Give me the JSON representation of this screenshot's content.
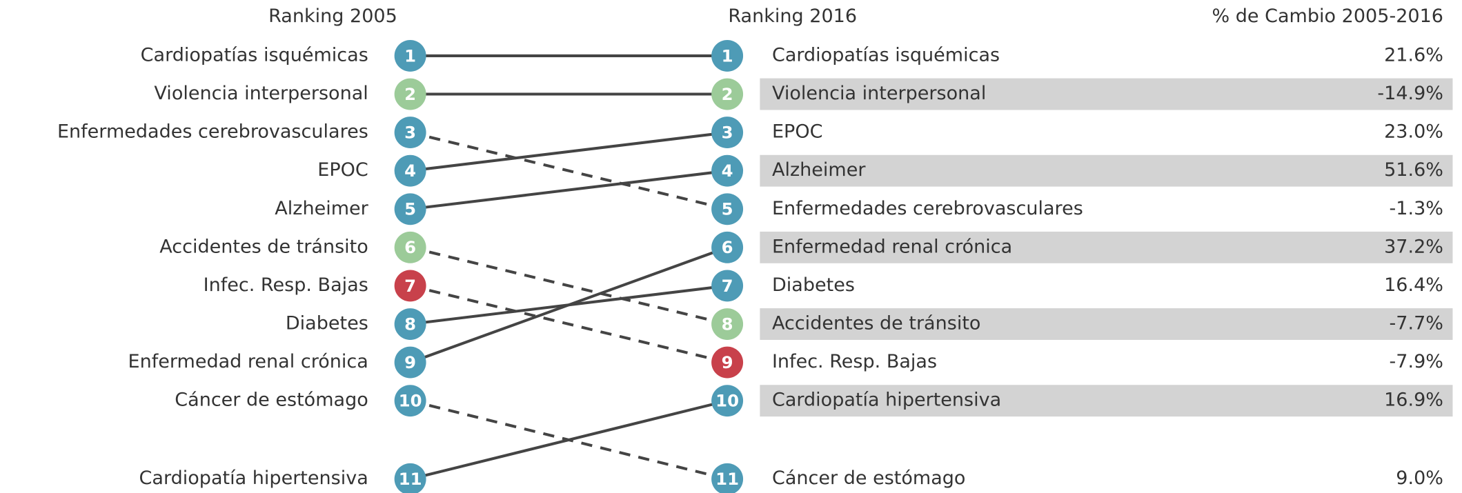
{
  "headers": {
    "left": "Ranking 2005",
    "right": "Ranking 2016",
    "change": "% de Cambio 2005-2016"
  },
  "colors": {
    "noncommunicable": "#4e9bb6",
    "injury": "#9ccb99",
    "communicable": "#c8414b"
  },
  "left": [
    {
      "rank": 1,
      "label": "Cardiopatías isquémicas",
      "group": "noncommunicable"
    },
    {
      "rank": 2,
      "label": "Violencia interpersonal",
      "group": "injury"
    },
    {
      "rank": 3,
      "label": "Enfermedades cerebrovasculares",
      "group": "noncommunicable"
    },
    {
      "rank": 4,
      "label": "EPOC",
      "group": "noncommunicable"
    },
    {
      "rank": 5,
      "label": "Alzheimer",
      "group": "noncommunicable"
    },
    {
      "rank": 6,
      "label": "Accidentes de tránsito",
      "group": "injury"
    },
    {
      "rank": 7,
      "label": "Infec. Resp. Bajas",
      "group": "communicable"
    },
    {
      "rank": 8,
      "label": "Diabetes",
      "group": "noncommunicable"
    },
    {
      "rank": 9,
      "label": "Enfermedad renal crónica",
      "group": "noncommunicable"
    },
    {
      "rank": 10,
      "label": "Cáncer de estómago",
      "group": "noncommunicable"
    },
    {
      "rank": 11,
      "label": "Cardiopatía hipertensiva",
      "group": "noncommunicable"
    }
  ],
  "right": [
    {
      "rank": 1,
      "label": "Cardiopatías isquémicas",
      "group": "noncommunicable",
      "change": "21.6%"
    },
    {
      "rank": 2,
      "label": "Violencia interpersonal",
      "group": "injury",
      "change": "-14.9%"
    },
    {
      "rank": 3,
      "label": "EPOC",
      "group": "noncommunicable",
      "change": "23.0%"
    },
    {
      "rank": 4,
      "label": "Alzheimer",
      "group": "noncommunicable",
      "change": "51.6%"
    },
    {
      "rank": 5,
      "label": "Enfermedades cerebrovasculares",
      "group": "noncommunicable",
      "change": "-1.3%"
    },
    {
      "rank": 6,
      "label": "Enfermedad renal crónica",
      "group": "noncommunicable",
      "change": "37.2%"
    },
    {
      "rank": 7,
      "label": "Diabetes",
      "group": "noncommunicable",
      "change": "16.4%"
    },
    {
      "rank": 8,
      "label": "Accidentes de tránsito",
      "group": "injury",
      "change": "-7.7%"
    },
    {
      "rank": 9,
      "label": "Infec. Resp. Bajas",
      "group": "communicable",
      "change": "-7.9%"
    },
    {
      "rank": 10,
      "label": "Cardiopatía hipertensiva",
      "group": "noncommunicable",
      "change": "16.9%"
    },
    {
      "rank": 11,
      "label": "Cáncer de estómago",
      "group": "noncommunicable",
      "change": "9.0%"
    }
  ]
}
